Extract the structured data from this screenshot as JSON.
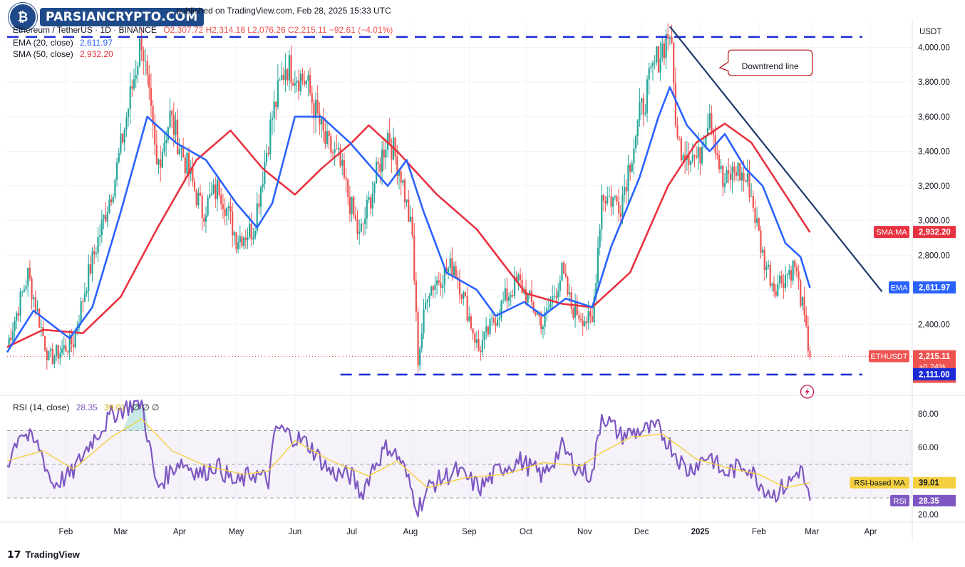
{
  "watermark": {
    "text": "PARSIANCRYPTO.COM"
  },
  "header": {
    "publisher_line": "… published on TradingView.com, Feb 28, 2025 15:33 UTC",
    "symbol_line": "Ethereum / TetherUS · 1D · BINANCE",
    "ohlc": "O2,307.72  H2,314.18  L2,076.26  C2,215.11  −92.61 (−4.01%)",
    "ema_label": "EMA (20, close)",
    "ema_value": "2,611.97",
    "sma_label": "SMA (50, close)",
    "sma_value": "2,932.20",
    "rsi_label": "RSI (14, close)",
    "rsi_value": "28.35",
    "rsi_ma_value": "39.01",
    "rsi_na": "∅  ∅  ∅"
  },
  "footer": {
    "brand": "TradingView"
  },
  "colors": {
    "up": "#26a69a",
    "down": "#ef5350",
    "ema": "#2962ff",
    "sma": "#e8323f",
    "rsi": "#7e57c2",
    "rsi_ma": "#f4d03f",
    "trendline": "#1f3a6b",
    "support": "#1a2bd6",
    "axis_text": "#131722"
  },
  "chart_data": [
    {
      "type": "candlestick",
      "title": "Ethereum / TetherUS · 1D · BINANCE",
      "price_axis": {
        "currency": "USDT",
        "ylim": [
          2020,
          4150
        ],
        "ticks": [
          "2,400.00",
          "2,600.00",
          "2,800.00",
          "3,000.00",
          "3,200.00",
          "3,400.00",
          "3,600.00",
          "3,800.00",
          "4,000.00"
        ]
      },
      "time_axis": {
        "ticks": [
          "Feb",
          "Mar",
          "Apr",
          "May",
          "Jun",
          "Jul",
          "Aug",
          "Sep",
          "Oct",
          "Nov",
          "Dec",
          "2025",
          "Feb",
          "Mar",
          "Apr"
        ],
        "range": [
          "2024-01-01",
          "2025-04-23"
        ]
      },
      "price_path": [
        [
          "2024-01-01",
          2280
        ],
        [
          "2024-01-12",
          2690
        ],
        [
          "2024-01-23",
          2200
        ],
        [
          "2024-02-05",
          2300
        ],
        [
          "2024-02-12",
          2650
        ],
        [
          "2024-02-27",
          3250
        ],
        [
          "2024-03-12",
          4060
        ],
        [
          "2024-03-20",
          3300
        ],
        [
          "2024-03-27",
          3600
        ],
        [
          "2024-04-13",
          3050
        ],
        [
          "2024-04-22",
          3200
        ],
        [
          "2024-05-01",
          2900
        ],
        [
          "2024-05-10",
          2950
        ],
        [
          "2024-05-20",
          3600
        ],
        [
          "2024-05-27",
          3900
        ],
        [
          "2024-06-07",
          3800
        ],
        [
          "2024-06-17",
          3450
        ],
        [
          "2024-06-24",
          3350
        ],
        [
          "2024-07-05",
          2900
        ],
        [
          "2024-07-20",
          3500
        ],
        [
          "2024-07-27",
          3270
        ],
        [
          "2024-08-02",
          2900
        ],
        [
          "2024-08-05",
          2200
        ],
        [
          "2024-08-10",
          2600
        ],
        [
          "2024-08-24",
          2750
        ],
        [
          "2024-09-06",
          2250
        ],
        [
          "2024-09-20",
          2550
        ],
        [
          "2024-09-27",
          2650
        ],
        [
          "2024-10-10",
          2400
        ],
        [
          "2024-10-20",
          2700
        ],
        [
          "2024-10-25",
          2500
        ],
        [
          "2024-11-05",
          2400
        ],
        [
          "2024-11-10",
          3150
        ],
        [
          "2024-11-20",
          3100
        ],
        [
          "2024-11-30",
          3600
        ],
        [
          "2024-12-08",
          3900
        ],
        [
          "2024-12-16",
          4100
        ],
        [
          "2024-12-20",
          3450
        ],
        [
          "2024-12-31",
          3350
        ],
        [
          "2025-01-06",
          3650
        ],
        [
          "2025-01-13",
          3200
        ],
        [
          "2025-01-20",
          3300
        ],
        [
          "2025-01-27",
          3200
        ],
        [
          "2025-02-03",
          2800
        ],
        [
          "2025-02-09",
          2620
        ],
        [
          "2025-02-20",
          2740
        ],
        [
          "2025-02-24",
          2500
        ],
        [
          "2025-02-26",
          2340
        ],
        [
          "2025-02-28",
          2215
        ]
      ],
      "ema20": [
        [
          "2024-01-01",
          2240
        ],
        [
          "2024-01-15",
          2480
        ],
        [
          "2024-02-03",
          2320
        ],
        [
          "2024-02-15",
          2500
        ],
        [
          "2024-03-01",
          3050
        ],
        [
          "2024-03-15",
          3600
        ],
        [
          "2024-03-30",
          3450
        ],
        [
          "2024-04-15",
          3350
        ],
        [
          "2024-05-01",
          3100
        ],
        [
          "2024-05-12",
          2960
        ],
        [
          "2024-05-20",
          3100
        ],
        [
          "2024-06-01",
          3600
        ],
        [
          "2024-06-15",
          3600
        ],
        [
          "2024-06-30",
          3450
        ],
        [
          "2024-07-12",
          3300
        ],
        [
          "2024-07-20",
          3200
        ],
        [
          "2024-07-30",
          3350
        ],
        [
          "2024-08-08",
          3050
        ],
        [
          "2024-08-20",
          2700
        ],
        [
          "2024-09-05",
          2600
        ],
        [
          "2024-09-15",
          2450
        ],
        [
          "2024-09-30",
          2530
        ],
        [
          "2024-10-10",
          2450
        ],
        [
          "2024-10-22",
          2550
        ],
        [
          "2024-11-05",
          2500
        ],
        [
          "2024-11-15",
          2850
        ],
        [
          "2024-11-30",
          3250
        ],
        [
          "2024-12-10",
          3600
        ],
        [
          "2024-12-16",
          3770
        ],
        [
          "2024-12-25",
          3550
        ],
        [
          "2025-01-06",
          3400
        ],
        [
          "2025-01-14",
          3500
        ],
        [
          "2025-01-25",
          3300
        ],
        [
          "2025-02-03",
          3200
        ],
        [
          "2025-02-15",
          2870
        ],
        [
          "2025-02-23",
          2790
        ],
        [
          "2025-02-28",
          2612
        ]
      ],
      "sma50": [
        [
          "2024-01-01",
          2270
        ],
        [
          "2024-01-20",
          2370
        ],
        [
          "2024-02-10",
          2350
        ],
        [
          "2024-03-01",
          2560
        ],
        [
          "2024-03-20",
          2950
        ],
        [
          "2024-04-10",
          3350
        ],
        [
          "2024-04-28",
          3520
        ],
        [
          "2024-05-15",
          3300
        ],
        [
          "2024-06-01",
          3150
        ],
        [
          "2024-06-15",
          3300
        ],
        [
          "2024-07-01",
          3450
        ],
        [
          "2024-07-10",
          3550
        ],
        [
          "2024-07-25",
          3400
        ],
        [
          "2024-08-15",
          3150
        ],
        [
          "2024-09-05",
          2950
        ],
        [
          "2024-10-01",
          2580
        ],
        [
          "2024-10-20",
          2520
        ],
        [
          "2024-11-05",
          2500
        ],
        [
          "2024-11-25",
          2700
        ],
        [
          "2024-12-15",
          3200
        ],
        [
          "2024-12-30",
          3450
        ],
        [
          "2025-01-14",
          3560
        ],
        [
          "2025-01-28",
          3450
        ],
        [
          "2025-02-12",
          3200
        ],
        [
          "2025-02-28",
          2932
        ]
      ],
      "trendline": [
        [
          "2024-12-16",
          4120
        ],
        [
          "2025-04-07",
          2590
        ]
      ],
      "support_top": {
        "y": 4060,
        "from": "2024-01-01",
        "to": "2025-04-23"
      },
      "support_bottom": {
        "y": 2111,
        "from": "2024-06-25",
        "to": "2025-04-23"
      },
      "current_price": 2215.11,
      "annotations": [
        {
          "text": "Downtrend line",
          "date": "2025-01-12",
          "price": 3890
        }
      ],
      "price_labels": [
        {
          "label": "SMA:MA",
          "value": "2,932.20",
          "price": 2932.2,
          "color": "#e8323f"
        },
        {
          "label": "EMA",
          "value": "2,611.97",
          "price": 2611.97,
          "color": "#2962ff"
        },
        {
          "label": "ETHUSDT",
          "value": "2,215.11",
          "extra": [
            "+0.24%",
            "08:26:13"
          ],
          "price": 2215.11,
          "color": "#ef5350"
        },
        {
          "label": "",
          "value": "2,111.00",
          "price": 2111,
          "color": "#1a2bd6"
        }
      ]
    },
    {
      "type": "line",
      "title": "RSI (14, close)",
      "ylim": [
        16,
        88
      ],
      "ticks": [
        "20.00",
        "60.00",
        "80.00"
      ],
      "bands": [
        30,
        70
      ],
      "rsi": [
        [
          "2024-01-01",
          50
        ],
        [
          "2024-01-08",
          70
        ],
        [
          "2024-01-18",
          60
        ],
        [
          "2024-01-25",
          38
        ],
        [
          "2024-02-04",
          44
        ],
        [
          "2024-02-14",
          63
        ],
        [
          "2024-02-26",
          80
        ],
        [
          "2024-03-08",
          86
        ],
        [
          "2024-03-12",
          87
        ],
        [
          "2024-03-20",
          36
        ],
        [
          "2024-04-01",
          52
        ],
        [
          "2024-04-13",
          44
        ],
        [
          "2024-04-20",
          50
        ],
        [
          "2024-05-01",
          38
        ],
        [
          "2024-05-10",
          45
        ],
        [
          "2024-05-18",
          40
        ],
        [
          "2024-05-22",
          72
        ],
        [
          "2024-05-30",
          67
        ],
        [
          "2024-06-08",
          62
        ],
        [
          "2024-06-20",
          45
        ],
        [
          "2024-07-01",
          43
        ],
        [
          "2024-07-06",
          32
        ],
        [
          "2024-07-12",
          48
        ],
        [
          "2024-07-20",
          61
        ],
        [
          "2024-07-27",
          52
        ],
        [
          "2024-08-05",
          24
        ],
        [
          "2024-08-12",
          38
        ],
        [
          "2024-08-25",
          46
        ],
        [
          "2024-09-07",
          36
        ],
        [
          "2024-09-18",
          48
        ],
        [
          "2024-09-28",
          52
        ],
        [
          "2024-10-10",
          43
        ],
        [
          "2024-10-20",
          60
        ],
        [
          "2024-10-28",
          48
        ],
        [
          "2024-11-05",
          43
        ],
        [
          "2024-11-10",
          80
        ],
        [
          "2024-11-20",
          67
        ],
        [
          "2024-12-01",
          70
        ],
        [
          "2024-12-10",
          71
        ],
        [
          "2024-12-17",
          60
        ],
        [
          "2024-12-25",
          46
        ],
        [
          "2025-01-06",
          56
        ],
        [
          "2025-01-13",
          44
        ],
        [
          "2025-01-25",
          50
        ],
        [
          "2025-02-03",
          37
        ],
        [
          "2025-02-09",
          32
        ],
        [
          "2025-02-18",
          40
        ],
        [
          "2025-02-23",
          48
        ],
        [
          "2025-02-28",
          28.35
        ]
      ],
      "rsi_ma": [
        [
          "2024-01-01",
          52
        ],
        [
          "2024-01-20",
          58
        ],
        [
          "2024-02-05",
          47
        ],
        [
          "2024-02-25",
          66
        ],
        [
          "2024-03-12",
          77
        ],
        [
          "2024-03-28",
          58
        ],
        [
          "2024-04-15",
          49
        ],
        [
          "2024-05-05",
          44
        ],
        [
          "2024-05-18",
          46
        ],
        [
          "2024-06-01",
          64
        ],
        [
          "2024-06-20",
          52
        ],
        [
          "2024-07-10",
          43
        ],
        [
          "2024-07-25",
          52
        ],
        [
          "2024-08-10",
          36
        ],
        [
          "2024-08-30",
          42
        ],
        [
          "2024-09-20",
          44
        ],
        [
          "2024-10-10",
          51
        ],
        [
          "2024-10-30",
          49
        ],
        [
          "2024-11-10",
          57
        ],
        [
          "2024-11-25",
          66
        ],
        [
          "2024-12-12",
          68
        ],
        [
          "2024-12-30",
          53
        ],
        [
          "2025-01-15",
          48
        ],
        [
          "2025-02-01",
          44
        ],
        [
          "2025-02-15",
          36
        ],
        [
          "2025-02-28",
          39.01
        ]
      ],
      "labels": [
        {
          "label": "RSI-based MA",
          "value": "39.01",
          "color": "#f4d03f"
        },
        {
          "label": "RSI",
          "value": "28.35",
          "color": "#7e57c2"
        }
      ]
    }
  ]
}
